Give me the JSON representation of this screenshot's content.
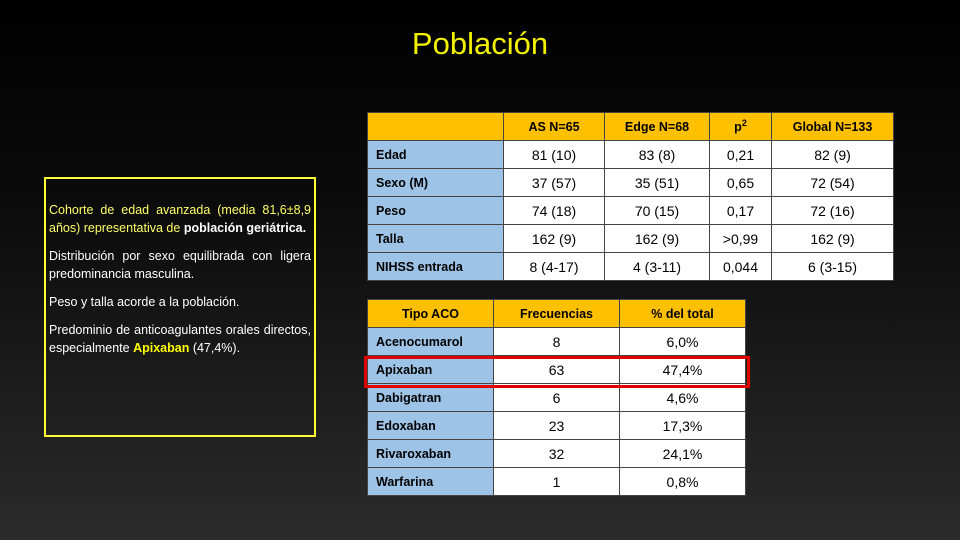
{
  "title": "Población",
  "summary": [
    [
      {
        "text": "Cohorte de edad avanzada (media 81,6±8,9 años) representativa de ",
        "style": "hl"
      },
      {
        "text": "población geriátrica.",
        "style": "bold"
      }
    ],
    [
      {
        "text": "Distribución por sexo equilibrada con ligera predominancia masculina.",
        "style": "plain"
      }
    ],
    [
      {
        "text": "Peso y talla acorde a la población.",
        "style": "plain"
      }
    ],
    [
      {
        "text": "Predominio de anticoagulantes orales directos, especialmente ",
        "style": "plain"
      },
      {
        "text": "Apixaban",
        "style": "boldhl"
      },
      {
        "text": " (47,4%).",
        "style": "plain"
      }
    ]
  ],
  "table1": {
    "header": [
      "",
      "AS N=65",
      "Edge N=68",
      {
        "text": "p",
        "sup": "2"
      },
      "Global N=133"
    ],
    "rows": [
      [
        "Edad",
        "81 (10)",
        "83 (8)",
        "0,21",
        "82 (9)"
      ],
      [
        "Sexo (M)",
        "37 (57)",
        "35 (51)",
        "0,65",
        "72 (54)"
      ],
      [
        "Peso",
        "74 (18)",
        "70 (15)",
        "0,17",
        "72 (16)"
      ],
      [
        "Talla",
        "162 (9)",
        "162 (9)",
        ">0,99",
        "162 (9)"
      ],
      [
        "NIHSS entrada",
        "8 (4-17)",
        "4 (3-11)",
        "0,044",
        "6 (3-15)"
      ]
    ]
  },
  "table2": {
    "header": [
      "Tipo ACO",
      "Frecuencias",
      "% del total"
    ],
    "rows": [
      [
        "Acenocumarol",
        "8",
        "6,0%"
      ],
      [
        "Apixaban",
        "63",
        "47,4%"
      ],
      [
        "Dabigatran",
        "6",
        "4,6%"
      ],
      [
        "Edoxaban",
        "23",
        "17,3%"
      ],
      [
        "Rivaroxaban",
        "32",
        "24,1%"
      ],
      [
        "Warfarina",
        "1",
        "0,8%"
      ]
    ],
    "highlight_row": "Apixaban"
  }
}
